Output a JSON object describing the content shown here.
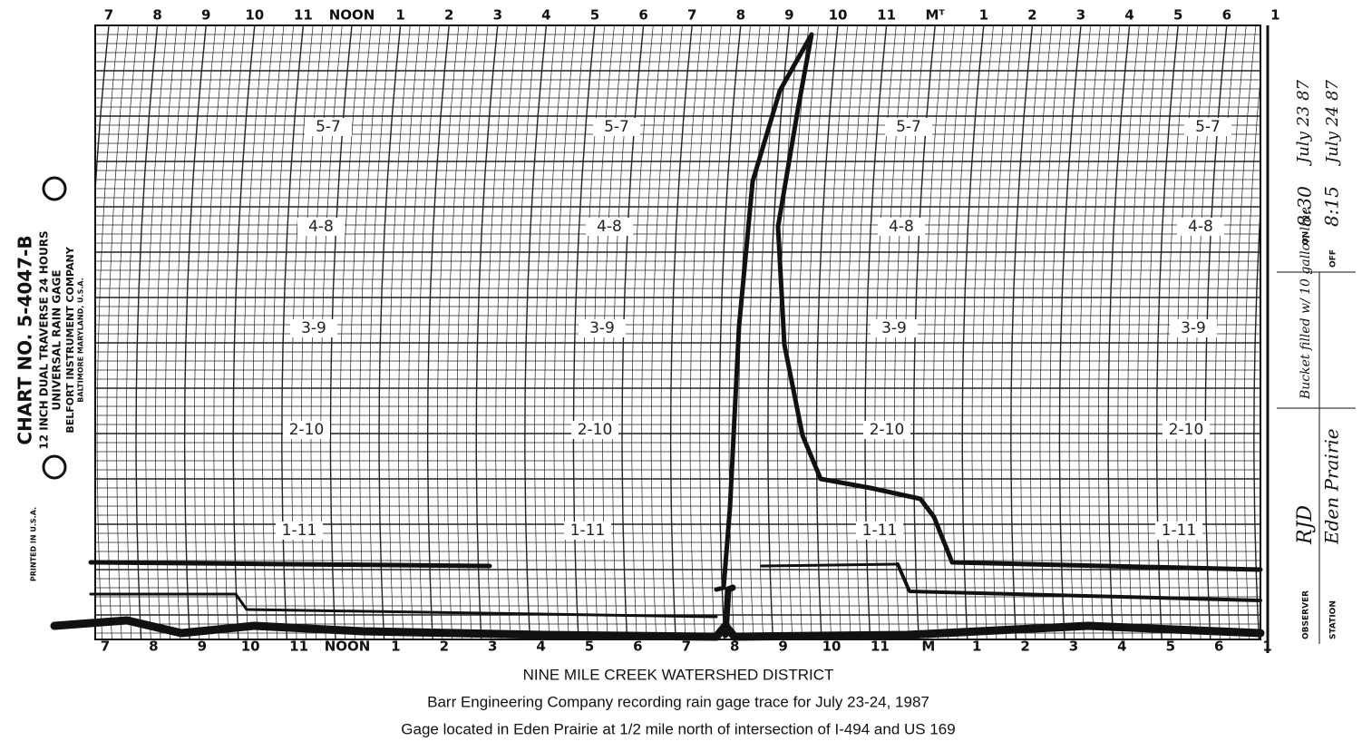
{
  "top_hour_labels": [
    "7",
    "8",
    "9",
    "10",
    "11",
    "NOON",
    "1",
    "2",
    "3",
    "4",
    "5",
    "6",
    "7",
    "8",
    "9",
    "10",
    "11",
    "Mᵀ",
    "1",
    "2",
    "3",
    "4",
    "5",
    "6",
    "1"
  ],
  "bottom_hour_labels": [
    "7",
    "8",
    "9",
    "10",
    "11",
    "NOON",
    "1",
    "2",
    "3",
    "4",
    "5",
    "6",
    "7",
    "8",
    "9",
    "10",
    "11",
    "M",
    "1",
    "2",
    "3",
    "4",
    "5",
    "6",
    "1"
  ],
  "scale_labels": [
    "5-7",
    "4-8",
    "3-9",
    "2-10",
    "1-11"
  ],
  "chart_info": {
    "chart_no": "CHART NO. 5-4047-B",
    "traverse": "12 INCH DUAL TRAVERSE  24 HOURS",
    "gage": "UNIVERSAL RAIN GAGE",
    "company": "BELFORT INSTRUMENT COMPANY",
    "location": "BALTIMORE   MARYLAND, U.S.A.",
    "printed": "PRINTED IN U.S.A."
  },
  "observer_form": {
    "on_label": "ON",
    "on_time": "8:30",
    "on_date": "July 23 87",
    "off_label": "OFF",
    "off_time": "8:15",
    "off_date": "July 24 87",
    "note": "Bucket filled w/ 10 gallon line",
    "observer_label": "OBSERVER",
    "observer": "RJD",
    "station_label": "STATION",
    "station": "Eden Prairie"
  },
  "caption": [
    "NINE MILE CREEK WATERSHED DISTRICT",
    "Barr Engineering Company recording rain gage trace for July 23-24, 1987",
    "Gage located in Eden Prairie at 1/2 mile north of intersection of I-494 and US 169"
  ]
}
